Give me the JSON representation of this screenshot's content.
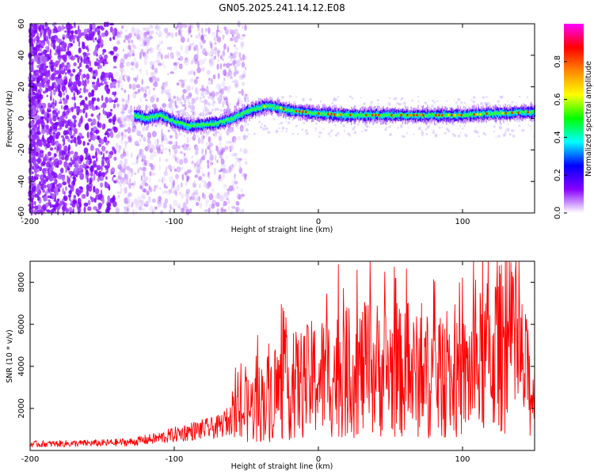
{
  "title": "GN05.2025.241.14.12.E08",
  "chart_data": [
    {
      "type": "heatmap",
      "title": "GN05.2025.241.14.12.E08",
      "xlabel": "Height of straight line (km)",
      "ylabel": "Frequency (Hz)",
      "xlim": [
        -200,
        150
      ],
      "ylim": [
        -60,
        60
      ],
      "xticks": [
        -200,
        -100,
        0,
        100
      ],
      "yticks": [
        60,
        40,
        20,
        0,
        -20,
        -40,
        -60
      ],
      "colorbar": {
        "label": "Normalized spectral amplitude",
        "range": [
          0.0,
          1.0
        ],
        "ticks": [
          "0.0",
          "0.2",
          "0.4",
          "0.6",
          "0.8"
        ],
        "colors": [
          "#ffffff",
          "#8800ff",
          "#0000ff",
          "#00ffff",
          "#00ff00",
          "#ffff00",
          "#ff8800",
          "#ff0000",
          "#ff00ff"
        ]
      },
      "ridge": {
        "x": [
          -128,
          -120,
          -110,
          -100,
          -90,
          -80,
          -70,
          -60,
          -50,
          -40,
          -35,
          -30,
          -20,
          -10,
          0,
          20,
          40,
          60,
          80,
          100,
          120,
          150
        ],
        "frequency": [
          2,
          0,
          2,
          -2,
          -5,
          -4,
          -3,
          0,
          4,
          7,
          8,
          7,
          5,
          4,
          3,
          2,
          2,
          2,
          2,
          2,
          3,
          4
        ]
      }
    },
    {
      "type": "line",
      "xlabel": "Height of straight line (km)",
      "ylabel": "SNR (10 * v/v)",
      "xlim": [
        -200,
        150
      ],
      "ylim": [
        0,
        9000
      ],
      "xticks": [
        -200,
        -100,
        0,
        100
      ],
      "yticks": [
        2000,
        4000,
        6000,
        8000
      ],
      "series": [
        {
          "name": "SNR",
          "color": "#ff0000",
          "envelope_x": [
            -200,
            -150,
            -130,
            -110,
            -90,
            -70,
            -60,
            -50,
            -40,
            -30,
            -20,
            -10,
            0,
            10,
            20,
            30,
            40,
            50,
            60,
            70,
            80,
            90,
            100,
            110,
            120,
            130,
            140,
            150
          ],
          "envelope_y": [
            300,
            350,
            400,
            600,
            900,
            1100,
            1500,
            1900,
            2300,
            2800,
            3000,
            3200,
            3500,
            3600,
            3700,
            3800,
            3900,
            3800,
            3600,
            3500,
            3600,
            3200,
            3400,
            4000,
            4600,
            5000,
            4200,
            2500
          ]
        }
      ]
    }
  ]
}
